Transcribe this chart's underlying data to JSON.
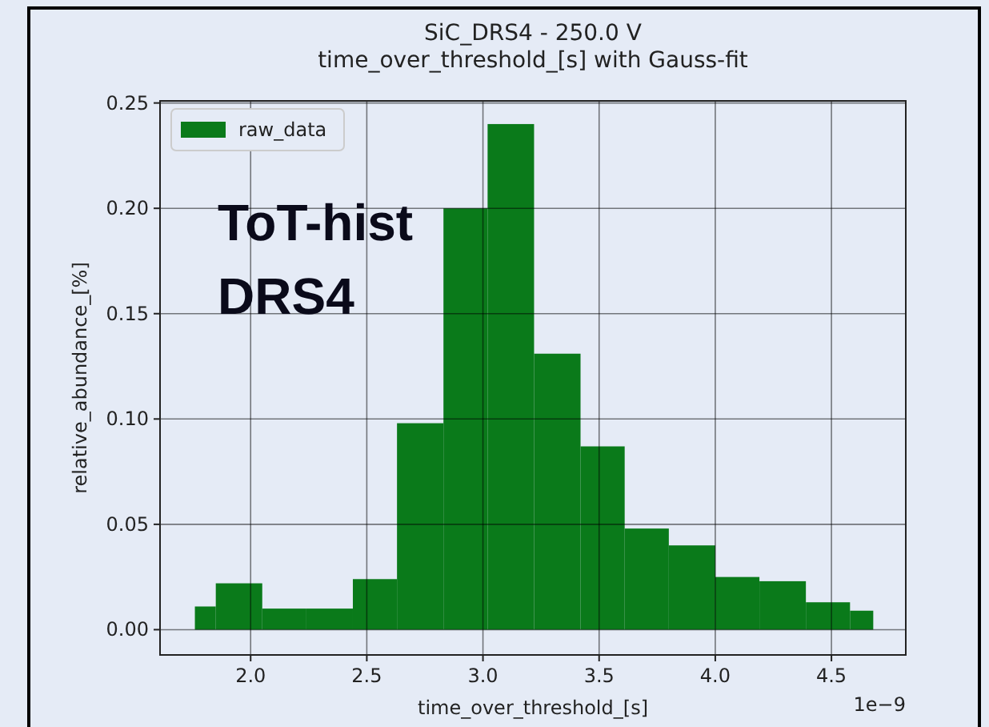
{
  "chart_data": {
    "type": "histogram",
    "title": "SiC_DRS4 - 250.0 V",
    "subtitle": "time_over_threshold_[s] with Gauss-fit",
    "xlabel": "time_over_threshold_[s]",
    "ylabel": "relative_abundance_[%]",
    "bins": [
      1.76,
      1.85,
      2.05,
      2.24,
      2.44,
      2.63,
      2.83,
      3.02,
      3.22,
      3.42,
      3.61,
      3.8,
      4.0,
      4.19,
      4.39,
      4.58,
      4.68
    ],
    "series": [
      {
        "name": "raw_data",
        "color": "#0a7a1a",
        "values": [
          0.011,
          0.022,
          0.01,
          0.01,
          0.024,
          0.098,
          0.2,
          0.24,
          0.131,
          0.087,
          0.048,
          0.04,
          0.025,
          0.023,
          0.013,
          0.009
        ]
      }
    ],
    "xlim": [
      1.61,
      4.82
    ],
    "ylim": [
      -0.012,
      0.251
    ],
    "xticks": [
      {
        "value": 2,
        "label": "2.0"
      },
      2.5,
      {
        "value": 3,
        "label": "3.0"
      },
      3.5,
      {
        "value": 4,
        "label": "4.0"
      },
      4.5
    ],
    "yticks": [
      {
        "value": 0,
        "label": "0.00"
      },
      0.05,
      {
        "value": 0.1,
        "label": "0.10"
      },
      0.15,
      {
        "value": 0.2,
        "label": "0.20"
      },
      0.25
    ],
    "annotations": [
      "ToT-hist\nDRS4",
      "1e−9"
    ],
    "grid": true,
    "legend": "top left"
  }
}
